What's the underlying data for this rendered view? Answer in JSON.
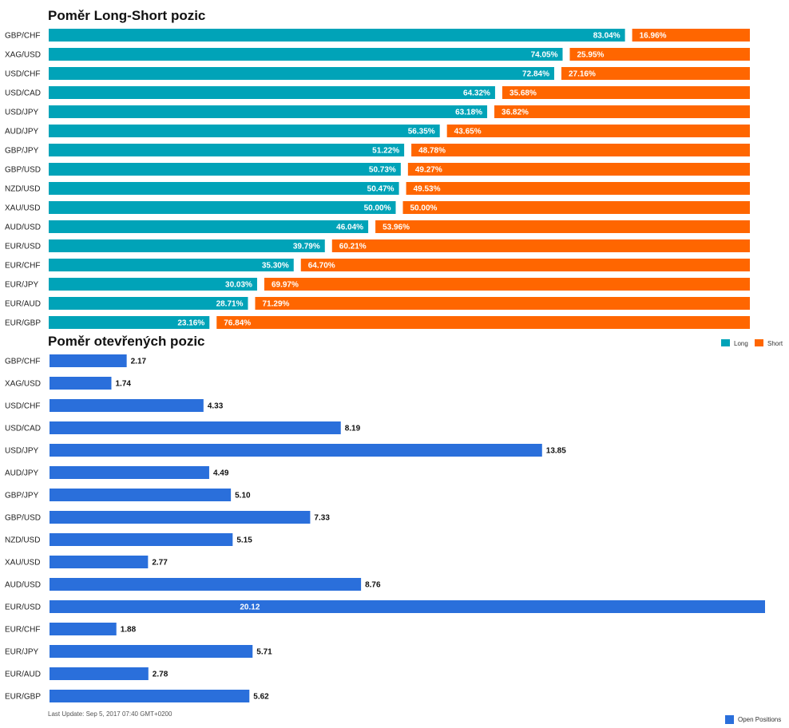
{
  "chart_data": [
    {
      "type": "bar",
      "orientation": "horizontal",
      "stacked": true,
      "percent_stacked": true,
      "title": "Poměr Long-Short pozic",
      "categories": [
        "GBP/CHF",
        "XAG/USD",
        "USD/CHF",
        "USD/CAD",
        "USD/JPY",
        "AUD/JPY",
        "GBP/JPY",
        "GBP/USD",
        "NZD/USD",
        "XAU/USD",
        "AUD/USD",
        "EUR/USD",
        "EUR/CHF",
        "EUR/JPY",
        "EUR/AUD",
        "EUR/GBP"
      ],
      "series": [
        {
          "name": "Long",
          "color": "#00a3b8",
          "values": [
            83.04,
            74.05,
            72.84,
            64.32,
            63.18,
            56.35,
            51.22,
            50.73,
            50.47,
            50.0,
            46.04,
            39.79,
            35.3,
            30.03,
            28.71,
            23.16
          ],
          "labels": [
            "83.04%",
            "74.05%",
            "72.84%",
            "64.32%",
            "63.18%",
            "56.35%",
            "51.22%",
            "50.73%",
            "50.47%",
            "50.00%",
            "46.04%",
            "39.79%",
            "35.30%",
            "30.03%",
            "28.71%",
            "23.16%"
          ]
        },
        {
          "name": "Short",
          "color": "#ff6600",
          "values": [
            16.96,
            25.95,
            27.16,
            35.68,
            36.82,
            43.65,
            48.78,
            49.27,
            49.53,
            50.0,
            53.96,
            60.21,
            64.7,
            69.97,
            71.29,
            76.84
          ],
          "labels": [
            "16.96%",
            "25.95%",
            "27.16%",
            "35.68%",
            "36.82%",
            "43.65%",
            "48.78%",
            "49.27%",
            "49.53%",
            "50.00%",
            "53.96%",
            "60.21%",
            "64.70%",
            "69.97%",
            "71.29%",
            "76.84%"
          ]
        }
      ],
      "xlim": [
        0,
        100
      ],
      "grid": false,
      "legend_position": "top-right"
    },
    {
      "type": "bar",
      "orientation": "horizontal",
      "title": "Poměr otevřených pozic",
      "categories": [
        "GBP/CHF",
        "XAG/USD",
        "USD/CHF",
        "USD/CAD",
        "USD/JPY",
        "AUD/JPY",
        "GBP/JPY",
        "GBP/USD",
        "NZD/USD",
        "XAU/USD",
        "AUD/USD",
        "EUR/USD",
        "EUR/CHF",
        "EUR/JPY",
        "EUR/AUD",
        "EUR/GBP"
      ],
      "series": [
        {
          "name": "Open Positions",
          "color": "#2a6fdb",
          "values": [
            2.17,
            1.74,
            4.33,
            8.19,
            13.85,
            4.49,
            5.1,
            7.33,
            5.15,
            2.77,
            8.76,
            20.12,
            1.88,
            5.71,
            2.78,
            5.62
          ],
          "labels": [
            "2.17",
            "1.74",
            "4.33",
            "8.19",
            "13.85",
            "4.49",
            "5.10",
            "7.33",
            "5.15",
            "2.77",
            "8.76",
            "20.12",
            "1.88",
            "5.71",
            "2.78",
            "5.62"
          ]
        }
      ],
      "xlim": [
        0,
        20.12
      ],
      "grid": false,
      "legend_position": "bottom-right"
    }
  ],
  "footer": {
    "last_update": "Last Update: Sep 5, 2017 07:40 GMT+0200"
  }
}
